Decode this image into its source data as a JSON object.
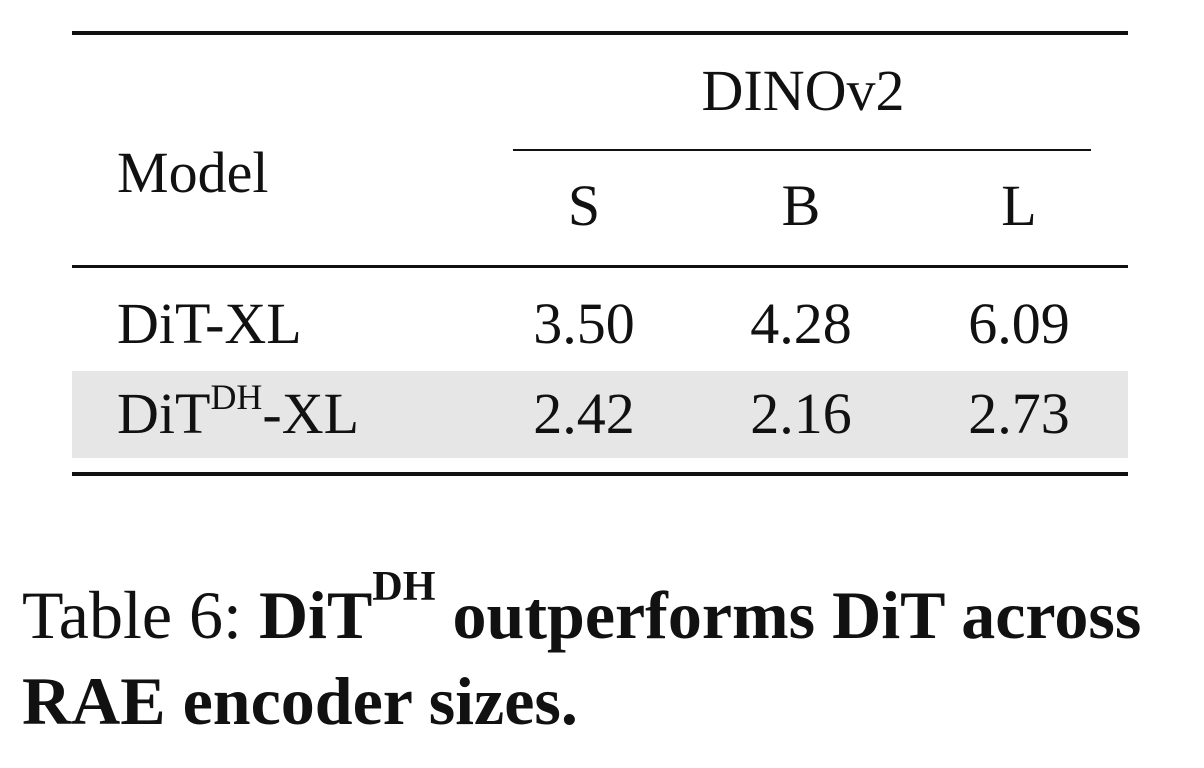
{
  "table": {
    "header": {
      "model": "Model",
      "group": "DINOv2",
      "columns": [
        "S",
        "B",
        "L"
      ]
    },
    "rows": [
      {
        "model": {
          "base": "DiT-XL"
        },
        "values": [
          "3.50",
          "4.28",
          "6.09"
        ]
      },
      {
        "model": {
          "base": "DiT",
          "sup": "DH",
          "suffix": "-XL"
        },
        "values": [
          "2.42",
          "2.16",
          "2.73"
        ],
        "highlight": true
      }
    ]
  },
  "caption": {
    "label": "Table 6:",
    "title": "DiT",
    "title_sup": "DH",
    "text": "outperforms DiT across RAE encoder sizes."
  }
}
